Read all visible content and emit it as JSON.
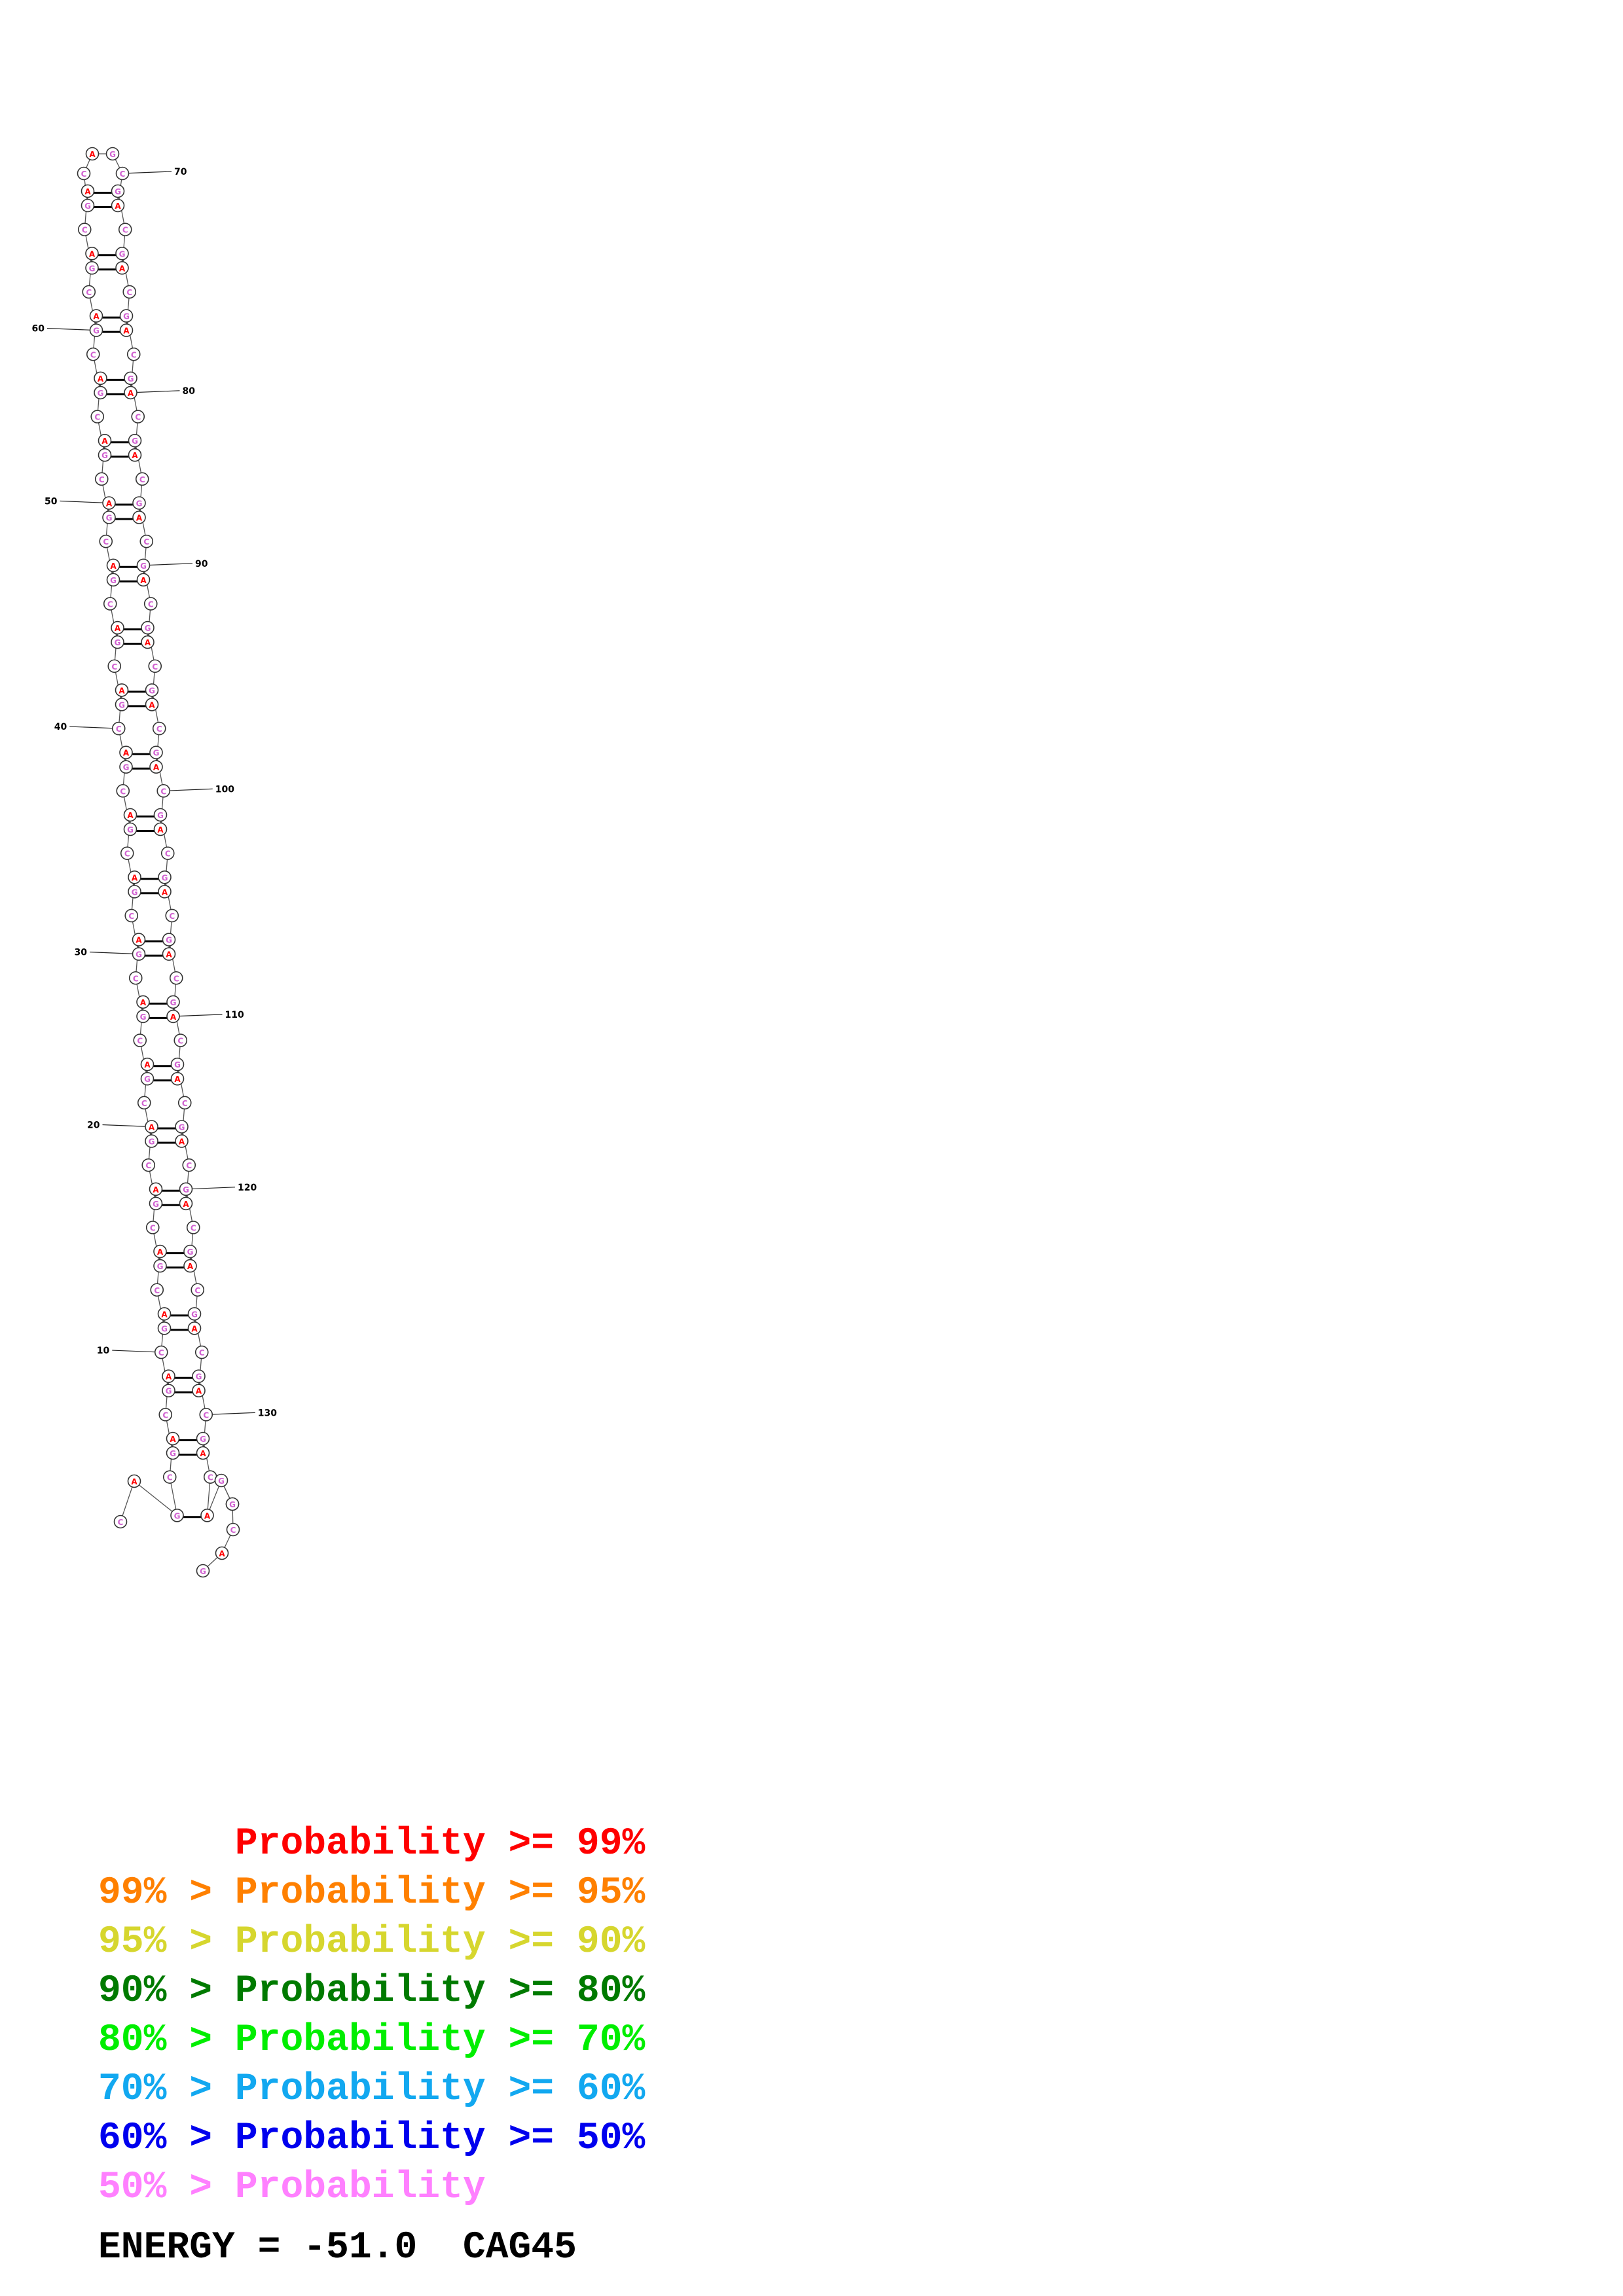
{
  "structure": {
    "sequence": "CAGCAGCAGCAGCAGCAGCAGCAGCAGCAGCAGCAGCAGCAGCAGCAGCAGCAGCAGCAGCAGCAGCAGCAGCAGCAGCAGCAGCAGCAGCAGCAGCAGCAGCAGCAGCAGCAGCAGCAGCAGCAGCAGCAGCAGCAG",
    "position_labels": [
      "10",
      "20",
      "30",
      "40",
      "50",
      "60",
      "70",
      "80",
      "90",
      "100",
      "110",
      "120",
      "130"
    ],
    "colors": {
      "unpaired_A_fill": "#ffb0b0",
      "unpaired_A_letter": "#ff0000",
      "paired_fill": "#f4c8f4",
      "paired_letter": "#d060d0",
      "backbone": "#555555",
      "base_pair": "#000000"
    }
  },
  "legend": [
    {
      "text": "      Probability >= 99%",
      "color": "#ff0000"
    },
    {
      "text": "99% > Probability >= 95%",
      "color": "#ff8000"
    },
    {
      "text": "95% > Probability >= 90%",
      "color": "#d6d62e"
    },
    {
      "text": "90% > Probability >= 80%",
      "color": "#007a00"
    },
    {
      "text": "80% > Probability >= 70%",
      "color": "#00ee00"
    },
    {
      "text": "70% > Probability >= 60%",
      "color": "#12a8f0"
    },
    {
      "text": "60% > Probability >= 50%",
      "color": "#0000ee"
    },
    {
      "text": "50% > Probability",
      "color": "#ff80ff"
    }
  ],
  "energy_label": "ENERGY = -51.0  CAG45"
}
